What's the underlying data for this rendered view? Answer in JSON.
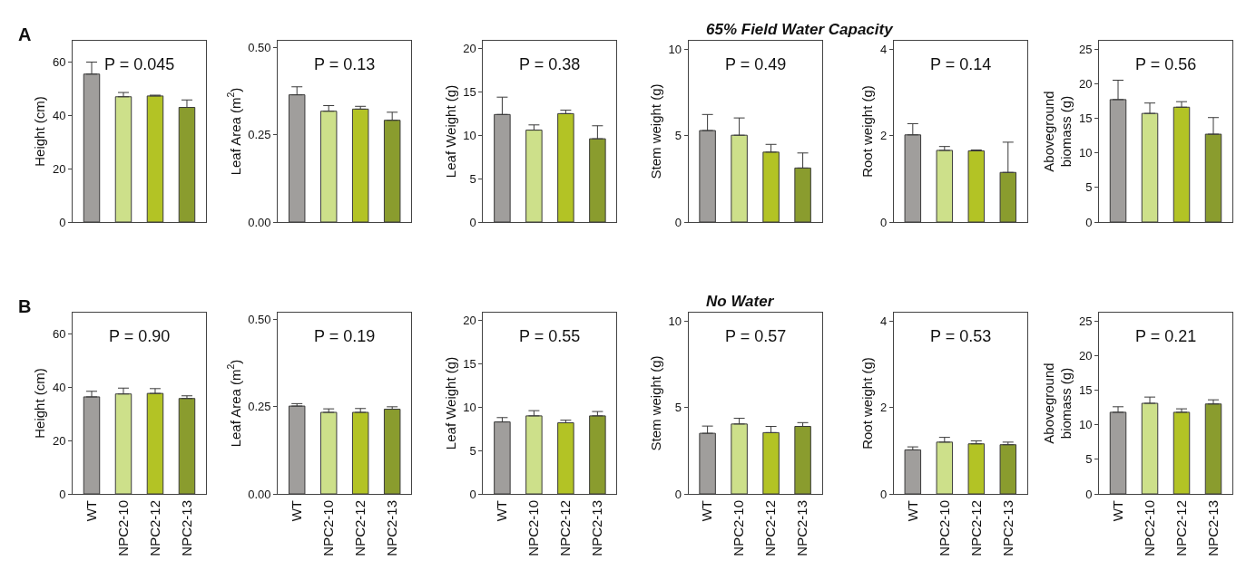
{
  "chart_data": [
    {
      "type": "bar",
      "annotations": [
        "A",
        "P = 0.045"
      ],
      "ylabel": "Height (cm)",
      "categories": [
        null,
        null,
        null,
        null
      ],
      "colors": [
        "#a09e9c",
        "#cde08a",
        "#b3c325",
        "#8a9c2e"
      ],
      "values": [
        55.5,
        47,
        47.3,
        43
      ],
      "errors": [
        [
          55.5,
          60
        ],
        [
          47,
          48.6
        ],
        [
          47.3,
          47.6
        ],
        [
          43,
          45.8
        ]
      ],
      "ylim": [
        0,
        68
      ],
      "yticks": [
        0,
        20,
        40,
        60
      ],
      "tick_labels": "y"
    },
    {
      "type": "bar",
      "annotations": [
        "P = 0.13"
      ],
      "ylabel": "Leaf Area (m$^{2}$)",
      "categories": [
        null,
        null,
        null,
        null
      ],
      "colors": [
        "#a09e9c",
        "#cde08a",
        "#b3c325",
        "#8a9c2e"
      ],
      "values": [
        0.365,
        0.318,
        0.324,
        0.292
      ],
      "errors": [
        [
          0.365,
          0.388
        ],
        [
          0.318,
          0.334
        ],
        [
          0.324,
          0.332
        ],
        [
          0.292,
          0.315
        ]
      ],
      "ylim": [
        0,
        0.52
      ],
      "yticks": [
        {
          "value": 0,
          "label": "0.00"
        },
        {
          "value": 0.25,
          "label": "0.25"
        },
        {
          "value": 0.5,
          "label": "0.50"
        }
      ],
      "tick_labels": "y"
    },
    {
      "type": "bar",
      "annotations": [
        "P = 0.38"
      ],
      "ylabel": "Leaf Weight (g)",
      "categories": [
        null,
        null,
        null,
        null
      ],
      "colors": [
        "#a09e9c",
        "#cde08a",
        "#b3c325",
        "#8a9c2e"
      ],
      "values": [
        12.4,
        10.6,
        12.5,
        9.6
      ],
      "errors": [
        [
          12.4,
          14.4
        ],
        [
          10.6,
          11.2
        ],
        [
          12.5,
          12.9
        ],
        [
          9.6,
          11.1
        ]
      ],
      "ylim": [
        0,
        20.9
      ],
      "yticks": [
        0,
        5,
        10,
        15,
        20
      ],
      "tick_labels": "y"
    },
    {
      "type": "bar",
      "title": "65% Field Water Capacity",
      "annotations": [
        "P = 0.49"
      ],
      "ylabel": "Stem weight (g)",
      "categories": [
        null,
        null,
        null,
        null
      ],
      "colors": [
        "#a09e9c",
        "#cde08a",
        "#b3c325",
        "#8a9c2e"
      ],
      "values": [
        5.3,
        5.03,
        4.05,
        3.13
      ],
      "errors": [
        [
          5.3,
          6.23
        ],
        [
          5.03,
          6.03
        ],
        [
          4.05,
          4.5
        ],
        [
          3.13,
          4.0
        ]
      ],
      "ylim": [
        0,
        10.5
      ],
      "yticks": [
        0,
        5,
        10
      ],
      "tick_labels": "y"
    },
    {
      "type": "bar",
      "annotations": [
        "P = 0.14"
      ],
      "ylabel": "Root weight (g)",
      "categories": [
        null,
        null,
        null,
        null
      ],
      "colors": [
        "#a09e9c",
        "#cde08a",
        "#b3c325",
        "#8a9c2e"
      ],
      "values": [
        2.02,
        1.66,
        1.65,
        1.15
      ],
      "errors": [
        [
          2.02,
          2.28
        ],
        [
          1.66,
          1.75
        ],
        [
          1.65,
          1.67
        ],
        [
          1.15,
          1.85
        ]
      ],
      "ylim": [
        0,
        4.2
      ],
      "yticks": [
        0,
        2,
        4
      ],
      "tick_labels": "y"
    },
    {
      "type": "bar",
      "annotations": [
        "P = 0.56"
      ],
      "ylabel": "Aboveground\nbiomass (g)",
      "categories": [
        null,
        null,
        null,
        null
      ],
      "colors": [
        "#a09e9c",
        "#cde08a",
        "#b3c325",
        "#8a9c2e"
      ],
      "values": [
        17.7,
        15.7,
        16.6,
        12.7
      ],
      "errors": [
        [
          17.7,
          20.5
        ],
        [
          15.7,
          17.2
        ],
        [
          16.6,
          17.4
        ],
        [
          12.7,
          15.1
        ]
      ],
      "ylim": [
        0,
        26.2
      ],
      "yticks": [
        0,
        5,
        10,
        15,
        20,
        25
      ],
      "tick_labels": "y"
    },
    {
      "type": "bar",
      "annotations": [
        "B",
        "P = 0.90"
      ],
      "ylabel": "Height (cm)",
      "categories": [
        "WT",
        "NPC2-10",
        "NPC2-12",
        "NPC2-13"
      ],
      "colors": [
        "#a09e9c",
        "#cde08a",
        "#b3c325",
        "#8a9c2e"
      ],
      "values": [
        36.4,
        37.5,
        37.7,
        35.8
      ],
      "errors": [
        [
          36.4,
          38.5
        ],
        [
          37.5,
          39.7
        ],
        [
          37.7,
          39.5
        ],
        [
          35.8,
          36.8
        ]
      ],
      "ylim": [
        0,
        68
      ],
      "yticks": [
        0,
        20,
        40,
        60
      ]
    },
    {
      "type": "bar",
      "annotations": [
        "P = 0.19"
      ],
      "ylabel": "Leaf Area (m$^{2}$)",
      "categories": [
        "WT",
        "NPC2-10",
        "NPC2-12",
        "NPC2-13"
      ],
      "colors": [
        "#a09e9c",
        "#cde08a",
        "#b3c325",
        "#8a9c2e"
      ],
      "values": [
        0.252,
        0.234,
        0.234,
        0.243
      ],
      "errors": [
        [
          0.252,
          0.259
        ],
        [
          0.234,
          0.244
        ],
        [
          0.234,
          0.245
        ],
        [
          0.243,
          0.25
        ]
      ],
      "ylim": [
        0,
        0.52
      ],
      "yticks": [
        {
          "value": 0,
          "label": "0.00"
        },
        {
          "value": 0.25,
          "label": "0.25"
        },
        {
          "value": 0.5,
          "label": "0.50"
        }
      ]
    },
    {
      "type": "bar",
      "annotations": [
        "P = 0.55"
      ],
      "ylabel": "Leaf Weight (g)",
      "categories": [
        "WT",
        "NPC2-10",
        "NPC2-12",
        "NPC2-13"
      ],
      "colors": [
        "#a09e9c",
        "#cde08a",
        "#b3c325",
        "#8a9c2e"
      ],
      "values": [
        8.3,
        9.0,
        8.2,
        9.0
      ],
      "errors": [
        [
          8.3,
          8.8
        ],
        [
          9.0,
          9.6
        ],
        [
          8.2,
          8.5
        ],
        [
          9.0,
          9.5
        ]
      ],
      "ylim": [
        0,
        20.9
      ],
      "yticks": [
        0,
        5,
        10,
        15,
        20
      ]
    },
    {
      "type": "bar",
      "title": "No Water",
      "annotations": [
        "P = 0.57"
      ],
      "ylabel": "Stem weight (g)",
      "categories": [
        "WT",
        "NPC2-10",
        "NPC2-12",
        "NPC2-13"
      ],
      "colors": [
        "#a09e9c",
        "#cde08a",
        "#b3c325",
        "#8a9c2e"
      ],
      "values": [
        3.51,
        4.05,
        3.55,
        3.91
      ],
      "errors": [
        [
          3.51,
          3.93
        ],
        [
          4.05,
          4.38
        ],
        [
          3.55,
          3.91
        ],
        [
          3.91,
          4.13
        ]
      ],
      "ylim": [
        0,
        10.5
      ],
      "yticks": [
        0,
        5,
        10
      ]
    },
    {
      "type": "bar",
      "annotations": [
        "P = 0.53"
      ],
      "ylabel": "Root weight (g)",
      "categories": [
        "WT",
        "NPC2-10",
        "NPC2-12",
        "NPC2-13"
      ],
      "colors": [
        "#a09e9c",
        "#cde08a",
        "#b3c325",
        "#8a9c2e"
      ],
      "values": [
        1.02,
        1.2,
        1.16,
        1.14
      ],
      "errors": [
        [
          1.02,
          1.09
        ],
        [
          1.2,
          1.31
        ],
        [
          1.16,
          1.23
        ],
        [
          1.14,
          1.2
        ]
      ],
      "ylim": [
        0,
        4.2
      ],
      "yticks": [
        0,
        2,
        4
      ]
    },
    {
      "type": "bar",
      "annotations": [
        "P = 0.21"
      ],
      "ylabel": "Aboveground\nbiomass (g)",
      "categories": [
        "WT",
        "NPC2-10",
        "NPC2-12",
        "NPC2-13"
      ],
      "colors": [
        "#a09e9c",
        "#cde08a",
        "#b3c325",
        "#8a9c2e"
      ],
      "values": [
        11.8,
        13.1,
        11.8,
        13.0
      ],
      "errors": [
        [
          11.8,
          12.6
        ],
        [
          13.1,
          14.0
        ],
        [
          11.8,
          12.3
        ],
        [
          13.0,
          13.6
        ]
      ],
      "ylim": [
        0,
        26.2
      ],
      "yticks": [
        0,
        5,
        10,
        15,
        20,
        25
      ]
    }
  ]
}
